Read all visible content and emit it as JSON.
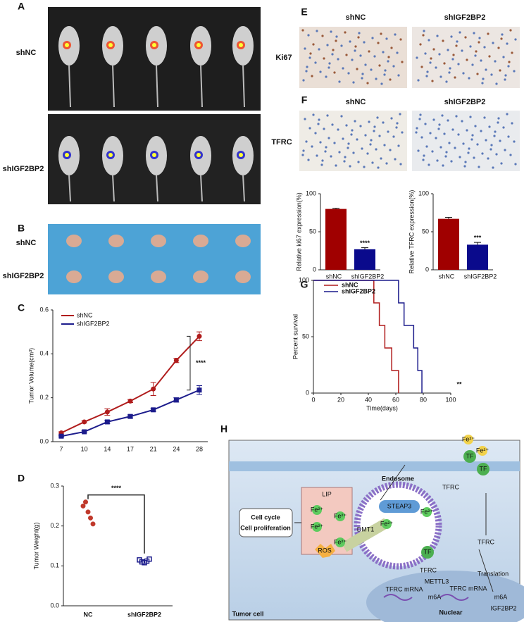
{
  "panels": {
    "a": "A",
    "b": "B",
    "c": "C",
    "d": "D",
    "e": "E",
    "f": "F",
    "g": "G",
    "h": "H"
  },
  "images": {
    "a_rows": [
      "shNC",
      "shIGF2BP2"
    ],
    "b_rows": [
      "shNC",
      "shIGF2BP2"
    ],
    "e_cols": [
      "shNC",
      "shIGF2BP2"
    ],
    "e_row": "Ki67",
    "f_cols": [
      "shNC",
      "shIGF2BP2"
    ],
    "f_row": "TFRC"
  },
  "chart_data": [
    {
      "type": "line",
      "ylabel": "Tumor Volume(cm³)",
      "categories": [
        "7",
        "10",
        "14",
        "17",
        "21",
        "24",
        "28"
      ],
      "series": [
        {
          "name": "shNC",
          "color": "#b01c1c",
          "values": [
            0.04,
            0.09,
            0.135,
            0.185,
            0.24,
            0.37,
            0.48
          ],
          "errors": [
            0.005,
            0.005,
            0.015,
            0.007,
            0.03,
            0.01,
            0.02
          ]
        },
        {
          "name": "shIGF2BP2",
          "color": "#1c1c8c",
          "values": [
            0.025,
            0.045,
            0.09,
            0.115,
            0.145,
            0.19,
            0.235
          ],
          "errors": [
            0.003,
            0.005,
            0.008,
            0.007,
            0.007,
            0.01,
            0.02
          ]
        }
      ],
      "ylim": [
        0,
        0.6
      ],
      "yticks": [
        {
          "value": 0,
          "label": "0.0"
        },
        0.2,
        0.4,
        0.6
      ],
      "annotation": "****"
    },
    {
      "type": "scatter",
      "ylabel": "Tumor Weight(g)",
      "categories": [
        "NC",
        "shIGF2BP2"
      ],
      "series": [
        {
          "name": "NC",
          "color": "#c0392b",
          "values": [
            0.25,
            0.26,
            0.235,
            0.22,
            0.205
          ]
        },
        {
          "name": "shIGF2BP2",
          "color": "#1c1c8c",
          "values": [
            0.115,
            0.11,
            0.108,
            0.112,
            0.117
          ]
        }
      ],
      "ylim": [
        0,
        0.3
      ],
      "yticks": [
        {
          "value": 0,
          "label": "0.0"
        },
        0.1,
        0.2,
        0.3
      ],
      "annotation": "****"
    },
    {
      "type": "bar",
      "ylabel": "Relative ki67 expression(%)",
      "categories": [
        "shNC",
        "shIGF2BP2"
      ],
      "values": [
        80,
        27
      ],
      "errors": [
        1,
        2
      ],
      "colors": [
        "#a00000",
        "#0a0a8c"
      ],
      "ylim": [
        0,
        100
      ],
      "yticks": [
        0,
        50,
        100
      ],
      "annotation": "****"
    },
    {
      "type": "bar",
      "ylabel": "Relative TFRC expression(%)",
      "categories": [
        "shNC",
        "shIGF2BP2"
      ],
      "values": [
        67,
        33
      ],
      "errors": [
        2,
        3
      ],
      "colors": [
        "#a00000",
        "#0a0a8c"
      ],
      "ylim": [
        0,
        100
      ],
      "yticks": [
        0,
        50,
        100
      ],
      "annotation": "***"
    },
    {
      "type": "step",
      "xlabel": "Time(days)",
      "ylabel": "Percent survival",
      "series": [
        {
          "name": "shNC",
          "color": "#b01c1c",
          "x": [
            0,
            44,
            44,
            48,
            48,
            52,
            52,
            57,
            57,
            62,
            62
          ],
          "values": [
            100,
            100,
            80,
            80,
            60,
            60,
            40,
            40,
            20,
            20,
            0
          ]
        },
        {
          "name": "shIGF2BP2",
          "color": "#1c1c8c",
          "x": [
            0,
            62,
            62,
            66,
            66,
            73,
            73,
            76,
            76,
            79,
            79
          ],
          "values": [
            100,
            100,
            80,
            80,
            60,
            60,
            40,
            40,
            20,
            20,
            0
          ]
        }
      ],
      "xlim": [
        0,
        100
      ],
      "xticks": [
        0,
        20,
        40,
        60,
        80,
        100
      ],
      "ylim": [
        0,
        100
      ],
      "yticks": [
        0,
        50,
        100
      ],
      "annotation": "**"
    }
  ],
  "diagram": {
    "endosome": "Endosome",
    "steap3": "STEAP3",
    "fe": "Fe²⁺",
    "tf": "TF",
    "tfrc": "TFRC",
    "lip": "LIP",
    "cell1": "Cell cycle",
    "cell2": "Cell proliferation",
    "dmt1": "DMT1",
    "ros": "ROS",
    "translation": "Translation",
    "mrna": "TFRC mRNA",
    "mettl": "METTL3",
    "m6a": "m6A",
    "igf": "IGF2BP2",
    "nuclear": "Nuclear",
    "tumor": "Tumor cell"
  }
}
